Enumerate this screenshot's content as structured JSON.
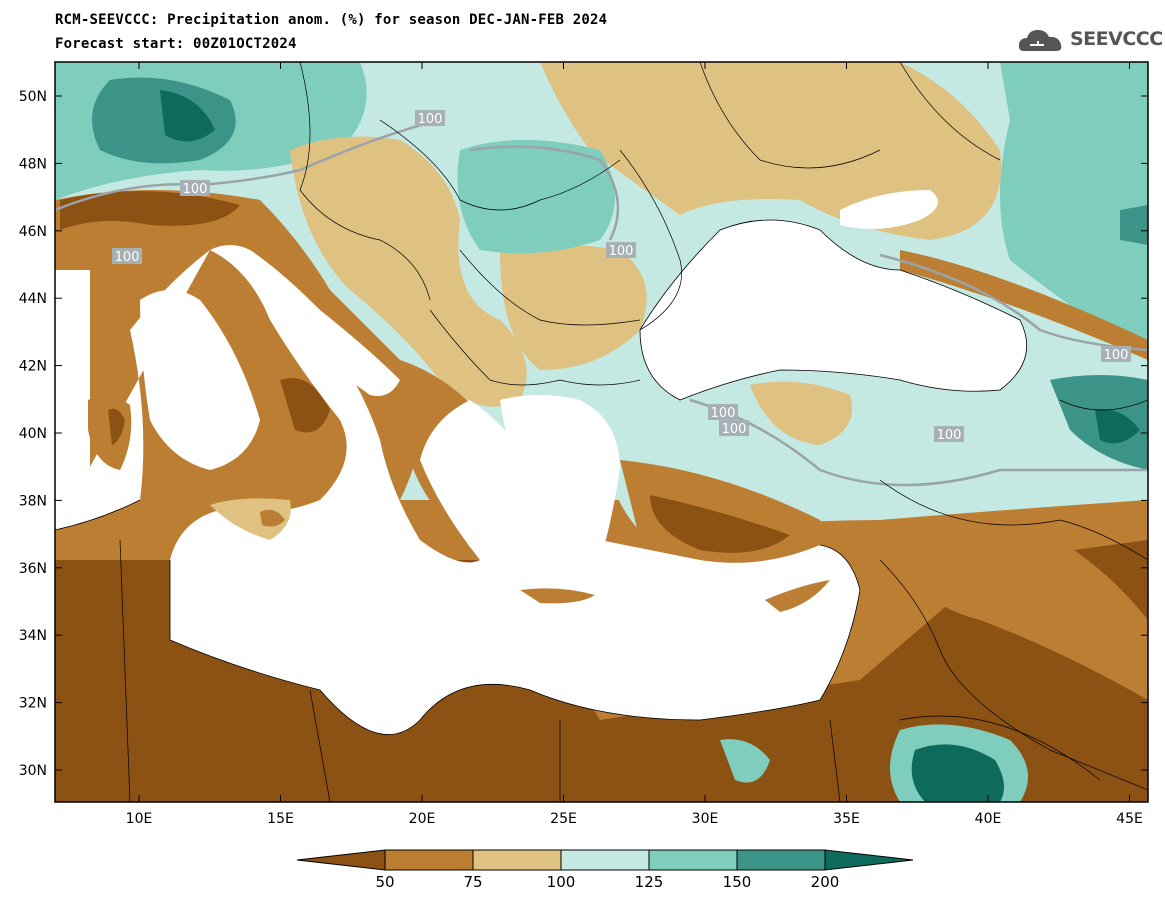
{
  "header": {
    "title": "RCM-SEEVCCC: Precipitation anom. (%) for season DEC-JAN-FEB 2024",
    "subtitle": "Forecast start: 00Z01OCT2024"
  },
  "logo": {
    "text": "SEEVCCC",
    "icon": "cloud-icon"
  },
  "map": {
    "lat_ticks": [
      "50N",
      "48N",
      "46N",
      "44N",
      "42N",
      "40N",
      "38N",
      "36N",
      "34N",
      "32N",
      "30N"
    ],
    "lon_ticks": [
      "10E",
      "15E",
      "20E",
      "25E",
      "30E",
      "35E",
      "40E",
      "45E"
    ],
    "contour_labels": [
      "100",
      "100",
      "100",
      "100",
      "100",
      "100",
      "100",
      "100"
    ]
  },
  "colorbar": {
    "labels": [
      "50",
      "75",
      "100",
      "125",
      "150",
      "200"
    ],
    "colors": [
      "#8b5213",
      "#bc7e33",
      "#dfc181",
      "#c4e8e2",
      "#7ecdbd",
      "#3c9489",
      "#0d6a5d"
    ]
  },
  "palette": {
    "very_dry": "#8b5213",
    "dry": "#bc7e33",
    "slightly_dry": "#dfc181",
    "slightly_wet": "#c4e8e2",
    "wet": "#7ecdbd",
    "very_wet": "#3c9489",
    "extreme_wet": "#0d6a5d",
    "sea": "#ffffff"
  }
}
